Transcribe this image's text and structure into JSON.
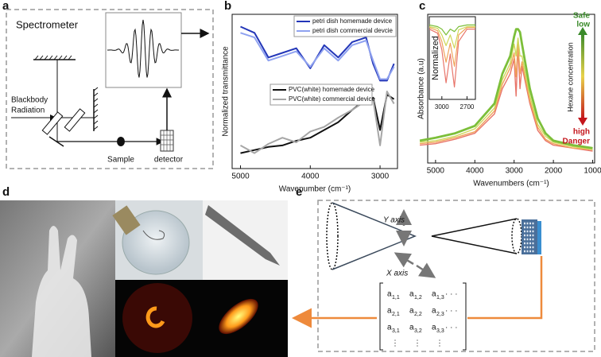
{
  "panel_labels": [
    "a",
    "b",
    "c",
    "d",
    "e"
  ],
  "panel_a": {
    "title": "Spectrometer",
    "source": [
      "Blackbody",
      "Radiation"
    ],
    "sample": "Sample",
    "detector": "detector"
  },
  "chart_data": [
    {
      "type": "line",
      "x_label": "Wavenumber (cm⁻¹)",
      "y_label": "Normalized transmittance",
      "x": [
        5000,
        4800,
        4600,
        4400,
        4200,
        4000,
        3800,
        3600,
        3400,
        3200,
        3100,
        3000,
        2900,
        2800
      ],
      "xlim": [
        5120,
        2750
      ],
      "xticks": [
        5000,
        4000,
        3000
      ],
      "ylim": [
        0,
        1
      ],
      "series": [
        {
          "name": "petri dish homemade device",
          "color": "#2336b8",
          "values": [
            0.92,
            0.88,
            0.72,
            0.75,
            0.78,
            0.65,
            0.8,
            0.72,
            0.82,
            0.85,
            0.68,
            0.57,
            0.57,
            0.68
          ]
        },
        {
          "name": "petri dish commercial devcie",
          "color": "#8fa2f0",
          "values": [
            0.88,
            0.85,
            0.7,
            0.73,
            0.76,
            0.66,
            0.78,
            0.7,
            0.8,
            0.83,
            0.7,
            0.58,
            0.58,
            0.66
          ]
        },
        {
          "name": "PVC(white) homemade device",
          "color": "#111111",
          "values": [
            0.1,
            0.12,
            0.14,
            0.15,
            0.18,
            0.2,
            0.25,
            0.3,
            0.38,
            0.45,
            0.46,
            0.25,
            0.48,
            0.45
          ]
        },
        {
          "name": "PVC(white) commercial device",
          "color": "#a6a6a6",
          "values": [
            0.15,
            0.1,
            0.16,
            0.2,
            0.17,
            0.24,
            0.27,
            0.33,
            0.38,
            0.44,
            0.45,
            0.15,
            0.5,
            0.42
          ]
        }
      ]
    },
    {
      "type": "line",
      "x_label": "Wavenumbers (cm⁻¹)",
      "y_label": "Absorbance (a.u)",
      "x": [
        5400,
        5000,
        4500,
        4000,
        3500,
        3300,
        3100,
        3000,
        2950,
        2900,
        2850,
        2800,
        2600,
        2400,
        2200,
        2000,
        1500,
        1000
      ],
      "xlim": [
        5200,
        950
      ],
      "xticks": [
        5000,
        4000,
        3000,
        2000,
        1000
      ],
      "ylim": [
        0,
        1
      ],
      "color_axis_label": "Hexane concentration",
      "annotations": [
        "Safe",
        "low",
        "high",
        "Danger"
      ],
      "series": [
        {
          "color": "#e8756a",
          "values": [
            0.12,
            0.13,
            0.16,
            0.2,
            0.33,
            0.5,
            0.6,
            0.7,
            0.45,
            0.78,
            0.5,
            0.65,
            0.4,
            0.22,
            0.15,
            0.12,
            0.1,
            0.08
          ]
        },
        {
          "color": "#f0a45a",
          "values": [
            0.13,
            0.14,
            0.17,
            0.21,
            0.35,
            0.53,
            0.64,
            0.74,
            0.58,
            0.8,
            0.6,
            0.68,
            0.42,
            0.24,
            0.16,
            0.13,
            0.1,
            0.09
          ]
        },
        {
          "color": "#cfd85a",
          "values": [
            0.14,
            0.15,
            0.18,
            0.23,
            0.37,
            0.56,
            0.67,
            0.8,
            0.72,
            0.84,
            0.72,
            0.72,
            0.45,
            0.26,
            0.18,
            0.14,
            0.11,
            0.09
          ]
        },
        {
          "color": "#7cbf3a",
          "values": [
            0.15,
            0.17,
            0.2,
            0.25,
            0.4,
            0.6,
            0.72,
            0.85,
            0.9,
            0.9,
            0.88,
            0.8,
            0.5,
            0.3,
            0.2,
            0.15,
            0.12,
            0.1
          ]
        }
      ]
    },
    {
      "type": "line",
      "y_label": "Normalized",
      "x": [
        3150,
        3050,
        3000,
        2950,
        2900,
        2850,
        2800,
        2700,
        2600
      ],
      "xlim": [
        3150,
        2600
      ],
      "xticks": [
        3000,
        2700
      ],
      "ylim": [
        0,
        1
      ],
      "series": [
        {
          "color": "#e8756a",
          "values": [
            0.85,
            0.8,
            0.6,
            0.2,
            0.55,
            0.15,
            0.7,
            0.85,
            0.85
          ]
        },
        {
          "color": "#f0a45a",
          "values": [
            0.87,
            0.83,
            0.7,
            0.45,
            0.68,
            0.4,
            0.78,
            0.87,
            0.87
          ]
        },
        {
          "color": "#cfd85a",
          "values": [
            0.88,
            0.86,
            0.78,
            0.65,
            0.78,
            0.62,
            0.84,
            0.88,
            0.88
          ]
        },
        {
          "color": "#7cbf3a",
          "values": [
            0.9,
            0.88,
            0.85,
            0.78,
            0.85,
            0.82,
            0.88,
            0.9,
            0.9
          ]
        }
      ]
    }
  ],
  "panel_e": {
    "y_axis": "Y axis",
    "x_axis": "X axis",
    "matrix": {
      "symbol": "a",
      "subscripts": [
        [
          "1,1",
          "1,2",
          "1,3"
        ],
        [
          "2,1",
          "2,2",
          "2,3"
        ],
        [
          "3,1",
          "3,2",
          "3,3"
        ]
      ]
    }
  }
}
